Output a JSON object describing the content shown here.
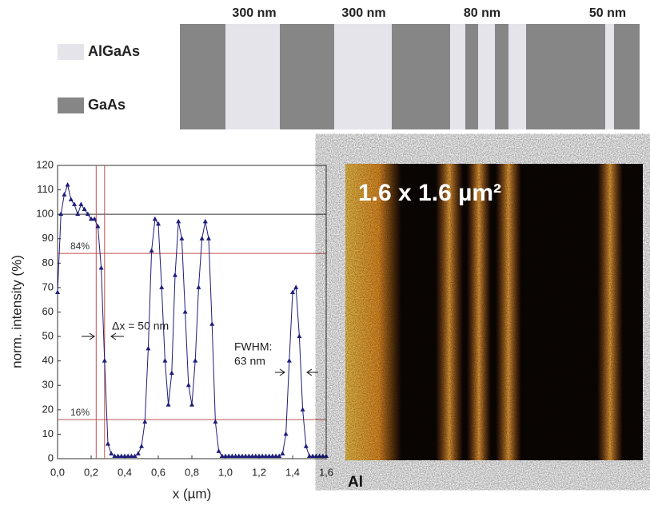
{
  "layers": {
    "legend": [
      {
        "label": "AlGaAs",
        "color": "#e4e4ea"
      },
      {
        "label": "GaAs",
        "color": "#868686"
      }
    ],
    "dimensions": [
      "300 nm",
      "300 nm",
      "80 nm",
      "50 nm"
    ]
  },
  "chart_data": {
    "type": "line",
    "xlabel": "x (µm)",
    "ylabel": "norm. intensity (%)",
    "x": [
      0,
      0.02,
      0.04,
      0.06,
      0.08,
      0.1,
      0.12,
      0.14,
      0.16,
      0.18,
      0.2,
      0.22,
      0.24,
      0.26,
      0.28,
      0.3,
      0.32,
      0.34,
      0.36,
      0.38,
      0.4,
      0.42,
      0.44,
      0.46,
      0.48,
      0.5,
      0.52,
      0.54,
      0.56,
      0.58,
      0.6,
      0.62,
      0.64,
      0.66,
      0.68,
      0.7,
      0.72,
      0.74,
      0.76,
      0.78,
      0.8,
      0.82,
      0.84,
      0.86,
      0.88,
      0.9,
      0.92,
      0.94,
      0.96,
      0.98,
      1,
      1.02,
      1.04,
      1.06,
      1.08,
      1.1,
      1.12,
      1.14,
      1.16,
      1.18,
      1.2,
      1.22,
      1.24,
      1.26,
      1.28,
      1.3,
      1.32,
      1.34,
      1.36,
      1.38,
      1.4,
      1.42,
      1.44,
      1.46,
      1.48,
      1.5,
      1.52,
      1.54,
      1.56,
      1.58,
      1.6
    ],
    "series": [
      {
        "color": "#1c1c7a",
        "values": [
          68,
          100,
          108,
          112,
          106,
          104,
          100,
          104,
          102,
          100,
          98,
          98,
          95,
          78,
          40,
          6,
          2,
          1,
          1,
          1,
          1,
          1,
          1,
          1,
          2,
          5,
          15,
          45,
          85,
          98,
          96,
          70,
          40,
          22,
          35,
          75,
          97,
          90,
          60,
          30,
          22,
          40,
          70,
          90,
          97,
          90,
          55,
          15,
          3,
          1,
          1,
          1,
          1,
          1,
          1,
          1,
          1,
          1,
          1,
          1,
          1,
          1,
          1,
          1,
          1,
          1,
          1,
          2,
          10,
          40,
          68,
          70,
          50,
          20,
          5,
          1,
          1,
          1,
          1,
          1,
          1
        ]
      }
    ],
    "xlim": [
      0,
      1.6
    ],
    "ylim": [
      0,
      120
    ],
    "xticks": [
      {
        "value": 0,
        "label": "0,0"
      },
      {
        "value": 0.2,
        "label": "0,2"
      },
      {
        "value": 0.4,
        "label": "0,4"
      },
      {
        "value": 0.6,
        "label": "0,6"
      },
      {
        "value": 0.8,
        "label": "0,8"
      },
      {
        "value": 1,
        "label": "1,0"
      },
      {
        "value": 1.2,
        "label": "1,2"
      },
      {
        "value": 1.4,
        "label": "1,4"
      },
      {
        "value": 1.6,
        "label": "1,6"
      }
    ],
    "yticks": [
      0,
      10,
      20,
      30,
      40,
      50,
      60,
      70,
      80,
      90,
      100,
      110,
      120
    ],
    "reference_lines": {
      "y": [
        {
          "value": 100,
          "color": "#333333"
        },
        {
          "value": 84,
          "color": "#c0504d"
        },
        {
          "value": 16,
          "color": "#c0504d"
        }
      ],
      "x": [
        {
          "value": 0.23,
          "color": "#c0504d"
        },
        {
          "value": 0.28,
          "color": "#c0504d"
        }
      ]
    },
    "annotations": [
      "84%",
      "16%",
      "Δx = 50 nm",
      "FWHM:",
      "63 nm"
    ]
  },
  "image": {
    "title": "1.6 x 1.6 µm²",
    "caption": "Al"
  }
}
